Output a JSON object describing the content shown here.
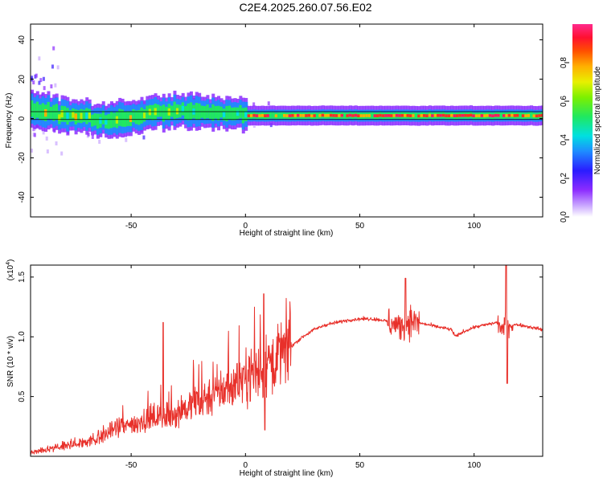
{
  "title": "C2E4.2025.260.07.56.E02",
  "colors": {
    "snr_line": "#e8302a",
    "ridge_red": "#ff1a3c",
    "background": "#ffffff"
  },
  "chart_data": [
    {
      "type": "heatmap",
      "name": "spectrogram",
      "title": "C2E4.2025.260.07.56.E02",
      "xlabel": "Height of straight line (km)",
      "ylabel": "Frequency (Hz)",
      "xlim": [
        -94,
        130
      ],
      "ylim": [
        -50,
        48
      ],
      "xticks": [
        -50,
        0,
        50,
        100
      ],
      "xtick_labels": [
        "-50",
        "0",
        "50",
        "100"
      ],
      "yticks": [
        -40,
        -20,
        0,
        20,
        40
      ],
      "ytick_labels": [
        "-40",
        "-20",
        "0",
        "20",
        "40"
      ],
      "colorbar": {
        "label": "Normalized spectral amplitude",
        "range": [
          0,
          1
        ],
        "ticks": [
          0.0,
          0.2,
          0.4,
          0.6,
          0.8
        ],
        "tick_labels": [
          "0.0",
          "0.2",
          "0.4",
          "0.6",
          "0.8"
        ],
        "colormap": "rainbow (purple→blue→cyan→green→yellow→orange→red→magenta)"
      },
      "ridge": {
        "description": "dominant energy band near 0–5 Hz; noisy below ~0 km, strong (red) above ~0 km",
        "frequency_center_hz": [
          {
            "x": -94,
            "f": 5
          },
          {
            "x": -80,
            "f": 2
          },
          {
            "x": -60,
            "f": -1
          },
          {
            "x": -40,
            "f": 3
          },
          {
            "x": -20,
            "f": 4
          },
          {
            "x": 0,
            "f": 1.5
          },
          {
            "x": 50,
            "f": 1.5
          },
          {
            "x": 130,
            "f": 1.5
          }
        ],
        "reference_lines_hz": [
          -0.5,
          3.5
        ]
      }
    },
    {
      "type": "line",
      "name": "snr",
      "xlabel": "Height of straight line (km)",
      "ylabel": "SNR (10 * v/v)",
      "y_multiplier_label": "(x10",
      "y_multiplier_exponent": "4",
      "y_multiplier_close": ")",
      "xlim": [
        -94,
        130
      ],
      "ylim": [
        0,
        1.6
      ],
      "xticks": [
        -50,
        0,
        50,
        100
      ],
      "xtick_labels": [
        "-50",
        "0",
        "50",
        "100"
      ],
      "yticks": [
        0.5,
        1.0,
        1.5
      ],
      "ytick_labels": [
        "0.5",
        "1.0",
        "1.5"
      ],
      "series": [
        {
          "name": "SNR",
          "units": "x10^4",
          "x": [
            -94,
            -90,
            -85,
            -80,
            -75,
            -70,
            -65,
            -60,
            -55,
            -50,
            -45,
            -40,
            -37,
            -35,
            -30,
            -25,
            -20,
            -15,
            -10,
            -5,
            0,
            5,
            8,
            10,
            15,
            20,
            25,
            30,
            35,
            40,
            45,
            50,
            55,
            60,
            63,
            65,
            67,
            70,
            72,
            75,
            80,
            85,
            90,
            92,
            95,
            100,
            105,
            110,
            113,
            114,
            115,
            120,
            125,
            130
          ],
          "values": [
            0.03,
            0.04,
            0.06,
            0.08,
            0.1,
            0.12,
            0.15,
            0.2,
            0.24,
            0.26,
            0.3,
            0.32,
            0.35,
            0.3,
            0.38,
            0.42,
            0.46,
            0.52,
            0.55,
            0.6,
            0.68,
            0.72,
            0.65,
            0.8,
            0.85,
            0.92,
            1.0,
            1.06,
            1.1,
            1.12,
            1.14,
            1.15,
            1.15,
            1.14,
            1.12,
            1.1,
            1.08,
            1.12,
            1.14,
            1.12,
            1.1,
            1.08,
            1.06,
            1.0,
            1.04,
            1.08,
            1.1,
            1.12,
            1.05,
            1.2,
            1.1,
            1.1,
            1.08,
            1.06
          ],
          "notable_spikes": [
            {
              "x": -36,
              "y": 1.12
            },
            {
              "x": 8,
              "y": 1.36
            },
            {
              "x": 8.5,
              "y": 0.22
            },
            {
              "x": 70,
              "y": 1.49
            },
            {
              "x": 114,
              "y": 1.6
            },
            {
              "x": 114.5,
              "y": 0.61
            }
          ]
        }
      ]
    }
  ]
}
